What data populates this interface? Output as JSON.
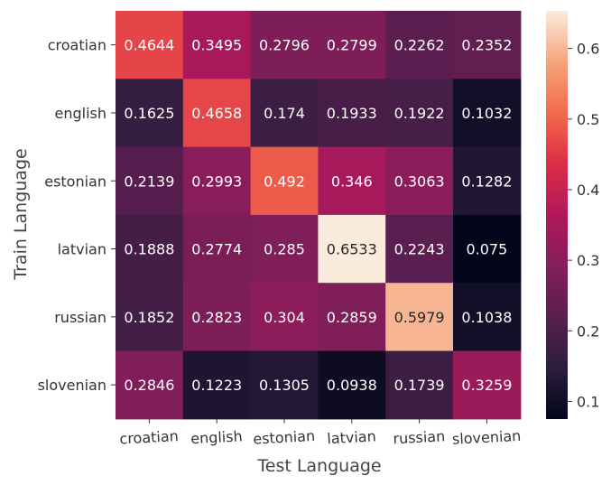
{
  "chart_data": {
    "type": "heatmap",
    "xlabel": "Test Language",
    "ylabel": "Train Language",
    "x_categories": [
      "croatian",
      "english",
      "estonian",
      "latvian",
      "russian",
      "slovenian"
    ],
    "y_categories": [
      "croatian",
      "english",
      "estonian",
      "latvian",
      "russian",
      "slovenian"
    ],
    "values": [
      [
        0.4644,
        0.3495,
        0.2796,
        0.2799,
        0.2262,
        0.2352
      ],
      [
        0.1625,
        0.4658,
        0.174,
        0.1933,
        0.1922,
        0.1032
      ],
      [
        0.2139,
        0.2993,
        0.492,
        0.346,
        0.3063,
        0.1282
      ],
      [
        0.1888,
        0.2774,
        0.285,
        0.6533,
        0.2243,
        0.075
      ],
      [
        0.1852,
        0.2823,
        0.304,
        0.2859,
        0.5979,
        0.1038
      ],
      [
        0.2846,
        0.1223,
        0.1305,
        0.0938,
        0.1739,
        0.3259
      ]
    ],
    "value_labels": [
      [
        "0.4644",
        "0.3495",
        "0.2796",
        "0.2799",
        "0.2262",
        "0.2352"
      ],
      [
        "0.1625",
        "0.4658",
        "0.174",
        "0.1933",
        "0.1922",
        "0.1032"
      ],
      [
        "0.2139",
        "0.2993",
        "0.492",
        "0.346",
        "0.3063",
        "0.1282"
      ],
      [
        "0.1888",
        "0.2774",
        "0.285",
        "0.6533",
        "0.2243",
        "0.075"
      ],
      [
        "0.1852",
        "0.2823",
        "0.304",
        "0.2859",
        "0.5979",
        "0.1038"
      ],
      [
        "0.2846",
        "0.1223",
        "0.1305",
        "0.0938",
        "0.1739",
        "0.3259"
      ]
    ],
    "colorbar": {
      "range": [
        0.075,
        0.6533
      ],
      "ticks": [
        0.1,
        0.2,
        0.3,
        0.4,
        0.5,
        0.6
      ],
      "tick_labels": [
        "0.1",
        "0.2",
        "0.3",
        "0.4",
        "0.5",
        "0.6"
      ],
      "colormap": "rocket"
    },
    "label_color_light": "#ffffff",
    "label_color_dark": "#262626"
  }
}
